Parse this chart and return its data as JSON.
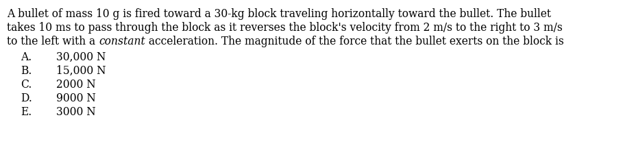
{
  "line1": "A bullet of mass 10 g is fired toward a 30-kg block traveling horizontally toward the bullet. The bullet",
  "line2": "takes 10 ms to pass through the block as it reverses the block's velocity from 2 m/s to the right to 3 m/s",
  "line3_before_italic": "to the left with a ",
  "line3_italic": "constant",
  "line3_after_italic": " acceleration. The magnitude of the force that the bullet exerts on the block is",
  "choices": [
    {
      "label": "A.",
      "text": "30,000 N"
    },
    {
      "label": "B.",
      "text": "15,000 N"
    },
    {
      "label": "C.",
      "text": "2000 N"
    },
    {
      "label": "D.",
      "text": "9000 N"
    },
    {
      "label": "E.",
      "text": "3000 N"
    }
  ],
  "font_size": 11.2,
  "text_color": "#000000",
  "background_color": "#ffffff"
}
